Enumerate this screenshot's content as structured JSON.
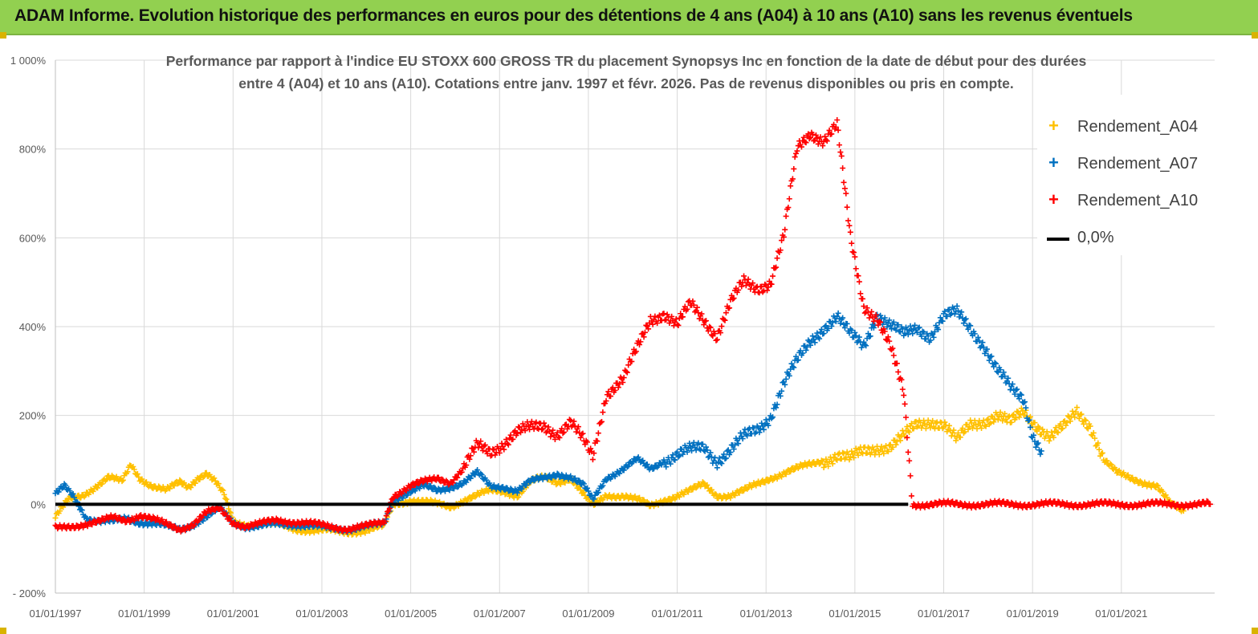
{
  "banner": {
    "title": "ADAM Informe. Evolution historique des performances en euros pour des détentions de 4 ans (A04) à 10 ans (A10) sans les revenus éventuels",
    "color": "#92d050"
  },
  "chart_data": {
    "type": "scatter",
    "title_line1": "Performance par rapport à l'indice EU STOXX 600 GROSS TR  du placement Synopsys Inc en fonction de la date de début pour des durées",
    "title_line2": "entre 4 (A04) et 10 ans (A10). Cotations entre janv. 1997 et févr. 2026. Pas de revenus disponibles ou pris en compte.",
    "xlabel": "",
    "ylabel": "",
    "x_ticks": [
      "01/01/1997",
      "01/01/1999",
      "01/01/2001",
      "01/01/2003",
      "01/01/2005",
      "01/01/2007",
      "01/01/2009",
      "01/01/2011",
      "01/01/2013",
      "01/01/2015",
      "01/01/2017",
      "01/01/2019",
      "01/01/2021"
    ],
    "xlim": [
      1997.0,
      2023.1
    ],
    "y_ticks": [
      "1 000%",
      "800%",
      "600%",
      "400%",
      "200%",
      "0%",
      "- 200%"
    ],
    "ylim": [
      -200,
      1000
    ],
    "grid": true,
    "legend_position": "right",
    "series": [
      {
        "name": "Rendement_A04",
        "color": "#ffc000",
        "marker": "+",
        "points": [
          [
            1997.0,
            -30
          ],
          [
            1997.3,
            10
          ],
          [
            1997.6,
            20
          ],
          [
            1997.9,
            40
          ],
          [
            1998.2,
            60
          ],
          [
            1998.5,
            50
          ],
          [
            1998.7,
            90
          ],
          [
            1998.9,
            60
          ],
          [
            1999.2,
            40
          ],
          [
            1999.5,
            30
          ],
          [
            1999.8,
            50
          ],
          [
            2000.0,
            40
          ],
          [
            2000.2,
            60
          ],
          [
            2000.4,
            70
          ],
          [
            2000.6,
            50
          ],
          [
            2000.8,
            20
          ],
          [
            2001.0,
            -40
          ],
          [
            2001.3,
            -45
          ],
          [
            2001.6,
            -45
          ],
          [
            2002.0,
            -45
          ],
          [
            2002.4,
            -55
          ],
          [
            2002.8,
            -60
          ],
          [
            2003.2,
            -60
          ],
          [
            2003.6,
            -62
          ],
          [
            2004.0,
            -60
          ],
          [
            2004.4,
            -50
          ],
          [
            2004.6,
            0
          ],
          [
            2005.0,
            10
          ],
          [
            2005.3,
            5
          ],
          [
            2005.6,
            0
          ],
          [
            2005.9,
            -5
          ],
          [
            2006.2,
            10
          ],
          [
            2006.5,
            20
          ],
          [
            2006.8,
            30
          ],
          [
            2007.1,
            30
          ],
          [
            2007.4,
            20
          ],
          [
            2007.7,
            50
          ],
          [
            2008.0,
            60
          ],
          [
            2008.3,
            50
          ],
          [
            2008.6,
            60
          ],
          [
            2008.9,
            20
          ],
          [
            2009.1,
            -5
          ],
          [
            2009.4,
            20
          ],
          [
            2009.8,
            20
          ],
          [
            2010.1,
            10
          ],
          [
            2010.4,
            -5
          ],
          [
            2010.7,
            10
          ],
          [
            2011.0,
            20
          ],
          [
            2011.3,
            30
          ],
          [
            2011.6,
            45
          ],
          [
            2011.9,
            20
          ],
          [
            2012.2,
            20
          ],
          [
            2012.5,
            30
          ],
          [
            2012.8,
            45
          ],
          [
            2013.1,
            60
          ],
          [
            2013.4,
            70
          ],
          [
            2013.7,
            80
          ],
          [
            2014.0,
            90
          ],
          [
            2014.3,
            100
          ],
          [
            2014.6,
            110
          ],
          [
            2014.9,
            100
          ],
          [
            2015.2,
            120
          ],
          [
            2015.5,
            130
          ],
          [
            2015.8,
            130
          ],
          [
            2016.1,
            150
          ],
          [
            2016.4,
            180
          ],
          [
            2016.7,
            190
          ],
          [
            2017.0,
            180
          ],
          [
            2017.3,
            140
          ],
          [
            2017.6,
            180
          ],
          [
            2017.9,
            190
          ],
          [
            2018.2,
            200
          ],
          [
            2018.5,
            180
          ],
          [
            2018.8,
            210
          ],
          [
            2019.1,
            180
          ],
          [
            2019.4,
            150
          ],
          [
            2019.7,
            170
          ],
          [
            2020.0,
            210
          ],
          [
            2020.3,
            180
          ],
          [
            2020.6,
            100
          ],
          [
            2020.9,
            70
          ],
          [
            2021.2,
            60
          ],
          [
            2021.5,
            50
          ],
          [
            2021.8,
            40
          ],
          [
            2022.1,
            0
          ],
          [
            2022.4,
            -15
          ]
        ]
      },
      {
        "name": "Rendement_A07",
        "color": "#0070c0",
        "marker": "+",
        "points": [
          [
            1997.0,
            20
          ],
          [
            1997.2,
            40
          ],
          [
            1997.4,
            20
          ],
          [
            1997.7,
            -30
          ],
          [
            1998.0,
            -40
          ],
          [
            1998.3,
            -40
          ],
          [
            1998.6,
            -30
          ],
          [
            1998.9,
            -40
          ],
          [
            1999.2,
            -45
          ],
          [
            1999.5,
            -50
          ],
          [
            1999.8,
            -55
          ],
          [
            2000.1,
            -45
          ],
          [
            2000.4,
            -30
          ],
          [
            2000.7,
            -10
          ],
          [
            2001.0,
            -40
          ],
          [
            2001.3,
            -50
          ],
          [
            2001.6,
            -50
          ],
          [
            2002.0,
            -45
          ],
          [
            2002.4,
            -45
          ],
          [
            2002.8,
            -50
          ],
          [
            2003.2,
            -55
          ],
          [
            2003.6,
            -55
          ],
          [
            2004.0,
            -50
          ],
          [
            2004.4,
            -45
          ],
          [
            2004.6,
            10
          ],
          [
            2005.0,
            30
          ],
          [
            2005.3,
            40
          ],
          [
            2005.6,
            30
          ],
          [
            2005.9,
            40
          ],
          [
            2006.2,
            50
          ],
          [
            2006.5,
            70
          ],
          [
            2006.8,
            40
          ],
          [
            2007.1,
            40
          ],
          [
            2007.4,
            30
          ],
          [
            2007.7,
            50
          ],
          [
            2008.0,
            60
          ],
          [
            2008.3,
            70
          ],
          [
            2008.6,
            60
          ],
          [
            2008.9,
            40
          ],
          [
            2009.1,
            10
          ],
          [
            2009.4,
            60
          ],
          [
            2009.8,
            80
          ],
          [
            2010.1,
            100
          ],
          [
            2010.4,
            80
          ],
          [
            2010.7,
            100
          ],
          [
            2011.0,
            110
          ],
          [
            2011.3,
            120
          ],
          [
            2011.6,
            130
          ],
          [
            2011.9,
            100
          ],
          [
            2012.2,
            120
          ],
          [
            2012.5,
            150
          ],
          [
            2012.8,
            170
          ],
          [
            2013.1,
            200
          ],
          [
            2013.4,
            270
          ],
          [
            2013.7,
            320
          ],
          [
            2014.0,
            370
          ],
          [
            2014.3,
            400
          ],
          [
            2014.6,
            420
          ],
          [
            2014.9,
            380
          ],
          [
            2015.2,
            360
          ],
          [
            2015.5,
            430
          ],
          [
            2015.8,
            400
          ],
          [
            2016.1,
            380
          ],
          [
            2016.4,
            400
          ],
          [
            2016.7,
            380
          ],
          [
            2017.0,
            420
          ],
          [
            2017.3,
            430
          ],
          [
            2017.6,
            400
          ],
          [
            2017.9,
            360
          ],
          [
            2018.2,
            300
          ],
          [
            2018.5,
            260
          ],
          [
            2018.8,
            240
          ],
          [
            2019.0,
            160
          ],
          [
            2019.2,
            120
          ]
        ]
      },
      {
        "name": "Rendement_A10",
        "color": "#ff0000",
        "marker": "+",
        "points": [
          [
            1997.0,
            -55
          ],
          [
            1997.3,
            -50
          ],
          [
            1997.6,
            -45
          ],
          [
            1998.0,
            -40
          ],
          [
            1998.3,
            -30
          ],
          [
            1998.6,
            -35
          ],
          [
            1998.9,
            -25
          ],
          [
            1999.2,
            -35
          ],
          [
            1999.5,
            -45
          ],
          [
            1999.8,
            -55
          ],
          [
            2000.1,
            -45
          ],
          [
            2000.4,
            -20
          ],
          [
            2000.7,
            -10
          ],
          [
            2001.0,
            -40
          ],
          [
            2001.3,
            -50
          ],
          [
            2001.6,
            -45
          ],
          [
            2002.0,
            -35
          ],
          [
            2002.4,
            -40
          ],
          [
            2002.8,
            -45
          ],
          [
            2003.2,
            -50
          ],
          [
            2003.6,
            -55
          ],
          [
            2004.0,
            -50
          ],
          [
            2004.4,
            -40
          ],
          [
            2004.6,
            20
          ],
          [
            2005.0,
            40
          ],
          [
            2005.3,
            50
          ],
          [
            2005.6,
            60
          ],
          [
            2005.9,
            50
          ],
          [
            2006.2,
            80
          ],
          [
            2006.5,
            130
          ],
          [
            2006.8,
            120
          ],
          [
            2007.1,
            140
          ],
          [
            2007.4,
            160
          ],
          [
            2007.7,
            170
          ],
          [
            2008.0,
            180
          ],
          [
            2008.3,
            160
          ],
          [
            2008.6,
            180
          ],
          [
            2008.9,
            140
          ],
          [
            2009.1,
            110
          ],
          [
            2009.4,
            250
          ],
          [
            2009.8,
            280
          ],
          [
            2010.1,
            350
          ],
          [
            2010.4,
            420
          ],
          [
            2010.7,
            430
          ],
          [
            2011.0,
            400
          ],
          [
            2011.3,
            450
          ],
          [
            2011.6,
            420
          ],
          [
            2011.9,
            380
          ],
          [
            2012.2,
            450
          ],
          [
            2012.5,
            500
          ],
          [
            2012.8,
            490
          ],
          [
            2013.1,
            500
          ],
          [
            2013.4,
            600
          ],
          [
            2013.7,
            800
          ],
          [
            2014.0,
            840
          ],
          [
            2014.3,
            820
          ],
          [
            2014.6,
            850
          ],
          [
            2014.9,
            600
          ],
          [
            2015.2,
            450
          ],
          [
            2015.5,
            420
          ],
          [
            2015.8,
            350
          ],
          [
            2016.1,
            250
          ],
          [
            2016.3,
            0
          ],
          [
            2017.0,
            0
          ],
          [
            2018.0,
            0
          ],
          [
            2019.0,
            0
          ],
          [
            2020.0,
            0
          ],
          [
            2021.0,
            0
          ],
          [
            2022.0,
            0
          ],
          [
            2023.0,
            0
          ]
        ]
      },
      {
        "name": "0,0%",
        "color": "#000000",
        "marker": "line",
        "points": [
          [
            1997.0,
            0
          ],
          [
            2016.2,
            0
          ]
        ]
      }
    ]
  }
}
